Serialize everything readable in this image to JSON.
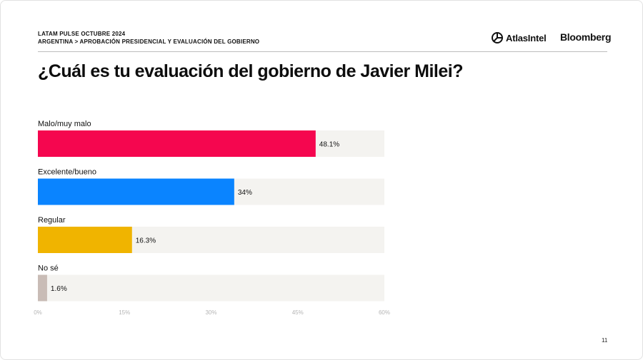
{
  "header": {
    "line1": "LATAM PULSE OCTUBRE 2024",
    "line2": "ARGENTINA > APROBACIÓN PRESIDENCIAL Y EVALUACIÓN DEL GOBIERNO"
  },
  "logos": {
    "atlas": "AtlasIntel",
    "bloomberg": "Bloomberg"
  },
  "page_number": "11",
  "chart_data": {
    "type": "bar",
    "orientation": "horizontal",
    "title": "¿Cuál es tu evaluación del gobierno de Javier Milei?",
    "categories": [
      "Malo/muy malo",
      "Excelente/bueno",
      "Regular",
      "No sé"
    ],
    "values": [
      48.1,
      34,
      16.3,
      1.6
    ],
    "value_labels": [
      "48.1%",
      "34%",
      "16.3%",
      "1.6%"
    ],
    "colors": [
      "#f5064f",
      "#0a84ff",
      "#f0b400",
      "#c9bcb6"
    ],
    "track_color": "#f4f3f0",
    "xlim": [
      0,
      60
    ],
    "xticks": [
      0,
      15,
      30,
      45,
      60
    ],
    "xtick_labels": [
      "0%",
      "15%",
      "30%",
      "45%",
      "60%"
    ],
    "grid": false,
    "legend": "none"
  }
}
